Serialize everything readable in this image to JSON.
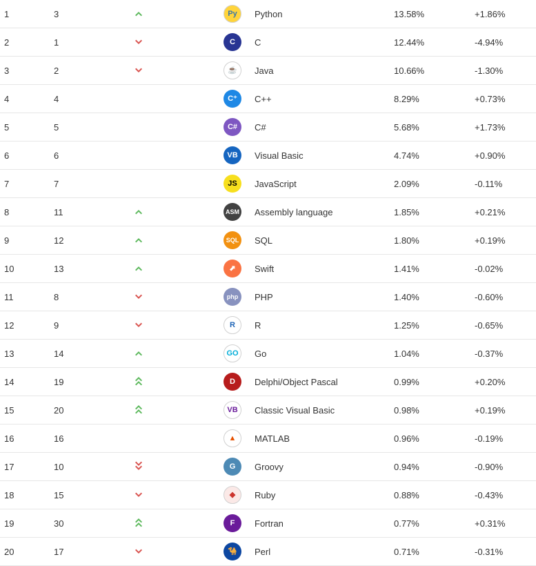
{
  "table": {
    "colors": {
      "up": "#5cb85c",
      "down": "#d9534f",
      "row_border": "#e6e6e6",
      "text": "#333333"
    },
    "rows": [
      {
        "rank": "1",
        "prev": "3",
        "change": "up",
        "name": "Python",
        "rating": "13.58%",
        "delta": "+1.86%",
        "icon": {
          "text": "Py",
          "bg": "#ffd43b",
          "fg": "#3776ab",
          "bordered": true
        }
      },
      {
        "rank": "2",
        "prev": "1",
        "change": "down",
        "name": "C",
        "rating": "12.44%",
        "delta": "-4.94%",
        "icon": {
          "text": "C",
          "bg": "#283593",
          "fg": "#ffffff"
        }
      },
      {
        "rank": "3",
        "prev": "2",
        "change": "down",
        "name": "Java",
        "rating": "10.66%",
        "delta": "-1.30%",
        "icon": {
          "text": "☕",
          "bg": "#ffffff",
          "fg": "#e76f00",
          "bordered": true
        }
      },
      {
        "rank": "4",
        "prev": "4",
        "change": "none",
        "name": "C++",
        "rating": "8.29%",
        "delta": "+0.73%",
        "icon": {
          "text": "C⁺",
          "bg": "#1e88e5",
          "fg": "#ffffff"
        }
      },
      {
        "rank": "5",
        "prev": "5",
        "change": "none",
        "name": "C#",
        "rating": "5.68%",
        "delta": "+1.73%",
        "icon": {
          "text": "C#",
          "bg": "#7e57c2",
          "fg": "#ffffff"
        }
      },
      {
        "rank": "6",
        "prev": "6",
        "change": "none",
        "name": "Visual Basic",
        "rating": "4.74%",
        "delta": "+0.90%",
        "icon": {
          "text": "VB",
          "bg": "#1565c0",
          "fg": "#ffffff"
        }
      },
      {
        "rank": "7",
        "prev": "7",
        "change": "none",
        "name": "JavaScript",
        "rating": "2.09%",
        "delta": "-0.11%",
        "icon": {
          "text": "JS",
          "bg": "#f7df1e",
          "fg": "#000000"
        }
      },
      {
        "rank": "8",
        "prev": "11",
        "change": "up",
        "name": "Assembly language",
        "rating": "1.85%",
        "delta": "+0.21%",
        "icon": {
          "text": "ASM",
          "bg": "#424242",
          "fg": "#ffffff"
        }
      },
      {
        "rank": "9",
        "prev": "12",
        "change": "up",
        "name": "SQL",
        "rating": "1.80%",
        "delta": "+0.19%",
        "icon": {
          "text": "SQL",
          "bg": "#f29111",
          "fg": "#ffffff"
        }
      },
      {
        "rank": "10",
        "prev": "13",
        "change": "up",
        "name": "Swift",
        "rating": "1.41%",
        "delta": "-0.02%",
        "icon": {
          "text": "⬈",
          "bg": "#fa7343",
          "fg": "#ffffff"
        }
      },
      {
        "rank": "11",
        "prev": "8",
        "change": "down",
        "name": "PHP",
        "rating": "1.40%",
        "delta": "-0.60%",
        "icon": {
          "text": "php",
          "bg": "#8892bf",
          "fg": "#ffffff"
        }
      },
      {
        "rank": "12",
        "prev": "9",
        "change": "down",
        "name": "R",
        "rating": "1.25%",
        "delta": "-0.65%",
        "icon": {
          "text": "R",
          "bg": "#ffffff",
          "fg": "#1f65b7",
          "bordered": true
        }
      },
      {
        "rank": "13",
        "prev": "14",
        "change": "up",
        "name": "Go",
        "rating": "1.04%",
        "delta": "-0.37%",
        "icon": {
          "text": "GO",
          "bg": "#ffffff",
          "fg": "#00add8",
          "bordered": true
        }
      },
      {
        "rank": "14",
        "prev": "19",
        "change": "up-double",
        "name": "Delphi/Object Pascal",
        "rating": "0.99%",
        "delta": "+0.20%",
        "icon": {
          "text": "D",
          "bg": "#b71c1c",
          "fg": "#ffffff"
        }
      },
      {
        "rank": "15",
        "prev": "20",
        "change": "up-double",
        "name": "Classic Visual Basic",
        "rating": "0.98%",
        "delta": "+0.19%",
        "icon": {
          "text": "VB",
          "bg": "#ffffff",
          "fg": "#6a1b9a",
          "bordered": true
        }
      },
      {
        "rank": "16",
        "prev": "16",
        "change": "none",
        "name": "MATLAB",
        "rating": "0.96%",
        "delta": "-0.19%",
        "icon": {
          "text": "▲",
          "bg": "#ffffff",
          "fg": "#e65100",
          "bordered": true
        }
      },
      {
        "rank": "17",
        "prev": "10",
        "change": "down-double",
        "name": "Groovy",
        "rating": "0.94%",
        "delta": "-0.90%",
        "icon": {
          "text": "G",
          "bg": "#4d8ab5",
          "fg": "#ffffff"
        }
      },
      {
        "rank": "18",
        "prev": "15",
        "change": "down",
        "name": "Ruby",
        "rating": "0.88%",
        "delta": "-0.43%",
        "icon": {
          "text": "◆",
          "bg": "#fbe9e7",
          "fg": "#cc342d",
          "bordered": true
        }
      },
      {
        "rank": "19",
        "prev": "30",
        "change": "up-double",
        "name": "Fortran",
        "rating": "0.77%",
        "delta": "+0.31%",
        "icon": {
          "text": "F",
          "bg": "#6a1b9a",
          "fg": "#ffffff"
        }
      },
      {
        "rank": "20",
        "prev": "17",
        "change": "down",
        "name": "Perl",
        "rating": "0.71%",
        "delta": "-0.31%",
        "icon": {
          "text": "🐪",
          "bg": "#0d47a1",
          "fg": "#ffffff"
        }
      }
    ]
  }
}
